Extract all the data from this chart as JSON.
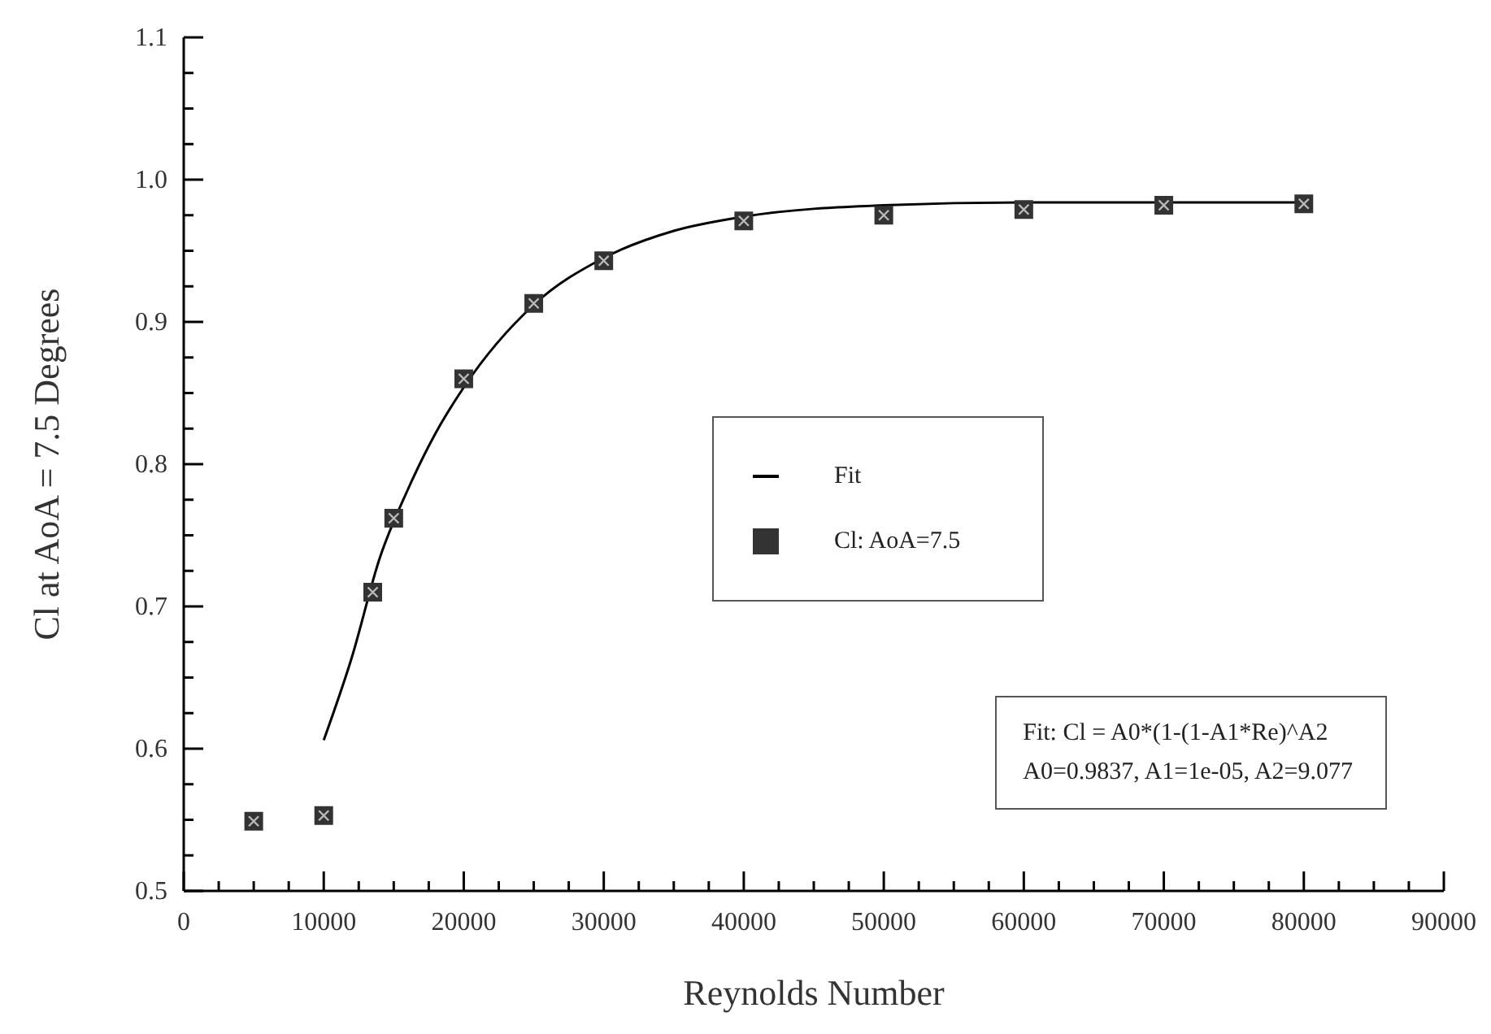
{
  "chart_data": {
    "type": "scatter",
    "xlabel": "Reynolds Number",
    "ylabel": "Cl at AoA = 7.5 Degrees",
    "xlim": [
      0,
      90000
    ],
    "ylim": [
      0.5,
      1.1
    ],
    "xticks": [
      0,
      {
        "value": 2500,
        "label": null
      },
      {
        "value": 5000,
        "label": null
      },
      {
        "value": 7500,
        "label": null
      },
      10000,
      {
        "value": 12500,
        "label": null
      },
      {
        "value": 15000,
        "label": null
      },
      {
        "value": 17500,
        "label": null
      },
      20000,
      {
        "value": 22500,
        "label": null
      },
      {
        "value": 25000,
        "label": null
      },
      {
        "value": 27500,
        "label": null
      },
      30000,
      {
        "value": 32500,
        "label": null
      },
      {
        "value": 35000,
        "label": null
      },
      {
        "value": 37500,
        "label": null
      },
      40000,
      {
        "value": 42500,
        "label": null
      },
      {
        "value": 45000,
        "label": null
      },
      {
        "value": 47500,
        "label": null
      },
      50000,
      {
        "value": 52500,
        "label": null
      },
      {
        "value": 55000,
        "label": null
      },
      {
        "value": 57500,
        "label": null
      },
      60000,
      {
        "value": 62500,
        "label": null
      },
      {
        "value": 65000,
        "label": null
      },
      {
        "value": 67500,
        "label": null
      },
      70000,
      {
        "value": 72500,
        "label": null
      },
      {
        "value": 75000,
        "label": null
      },
      {
        "value": 77500,
        "label": null
      },
      80000,
      {
        "value": 82500,
        "label": null
      },
      {
        "value": 85000,
        "label": null
      },
      {
        "value": 87500,
        "label": null
      },
      90000
    ],
    "yticks": [
      {
        "value": 0.5,
        "label": "0.5"
      },
      {
        "value": 0.525,
        "label": null
      },
      {
        "value": 0.55,
        "label": null
      },
      {
        "value": 0.575,
        "label": null
      },
      {
        "value": 0.6,
        "label": "0.6"
      },
      {
        "value": 0.625,
        "label": null
      },
      {
        "value": 0.65,
        "label": null
      },
      {
        "value": 0.675,
        "label": null
      },
      {
        "value": 0.7,
        "label": "0.7"
      },
      {
        "value": 0.725,
        "label": null
      },
      {
        "value": 0.75,
        "label": null
      },
      {
        "value": 0.775,
        "label": null
      },
      {
        "value": 0.8,
        "label": "0.8"
      },
      {
        "value": 0.825,
        "label": null
      },
      {
        "value": 0.85,
        "label": null
      },
      {
        "value": 0.875,
        "label": null
      },
      {
        "value": 0.9,
        "label": "0.9"
      },
      {
        "value": 0.925,
        "label": null
      },
      {
        "value": 0.95,
        "label": null
      },
      {
        "value": 0.975,
        "label": null
      },
      {
        "value": 1.0,
        "label": "1.0"
      },
      {
        "value": 1.025,
        "label": null
      },
      {
        "value": 1.05,
        "label": null
      },
      {
        "value": 1.075,
        "label": null
      },
      {
        "value": 1.1,
        "label": "1.1"
      }
    ],
    "legend": "center",
    "series": [
      {
        "name": "Fit",
        "type": "line",
        "color": "#000000",
        "marker": "none",
        "line_style": "solid",
        "x": [
          10000,
          12000,
          14000,
          16000,
          18000,
          20000,
          25000,
          30000,
          35000,
          40000,
          50000,
          60000,
          70000,
          80000
        ],
        "values": [
          0.606,
          0.664,
          0.734,
          0.782,
          0.822,
          0.854,
          0.912,
          0.945,
          0.964,
          0.974,
          0.982,
          0.984,
          0.984,
          0.984
        ]
      },
      {
        "name": "Cl: AoA=7.5",
        "color": "#333333",
        "marker": "square",
        "x": [
          5000,
          10000,
          13500,
          15000,
          20000,
          25000,
          30000,
          40000,
          50000,
          60000,
          70000,
          80000
        ],
        "values": [
          0.549,
          0.553,
          0.71,
          0.762,
          0.86,
          0.913,
          0.943,
          0.971,
          0.975,
          0.979,
          0.982,
          0.983
        ]
      }
    ],
    "annotations": [
      "Fit: Cl = A0*(1-(1-A1*Re)^A2\nA0=0.9837, A1=1e-05, A2=9.077"
    ]
  }
}
